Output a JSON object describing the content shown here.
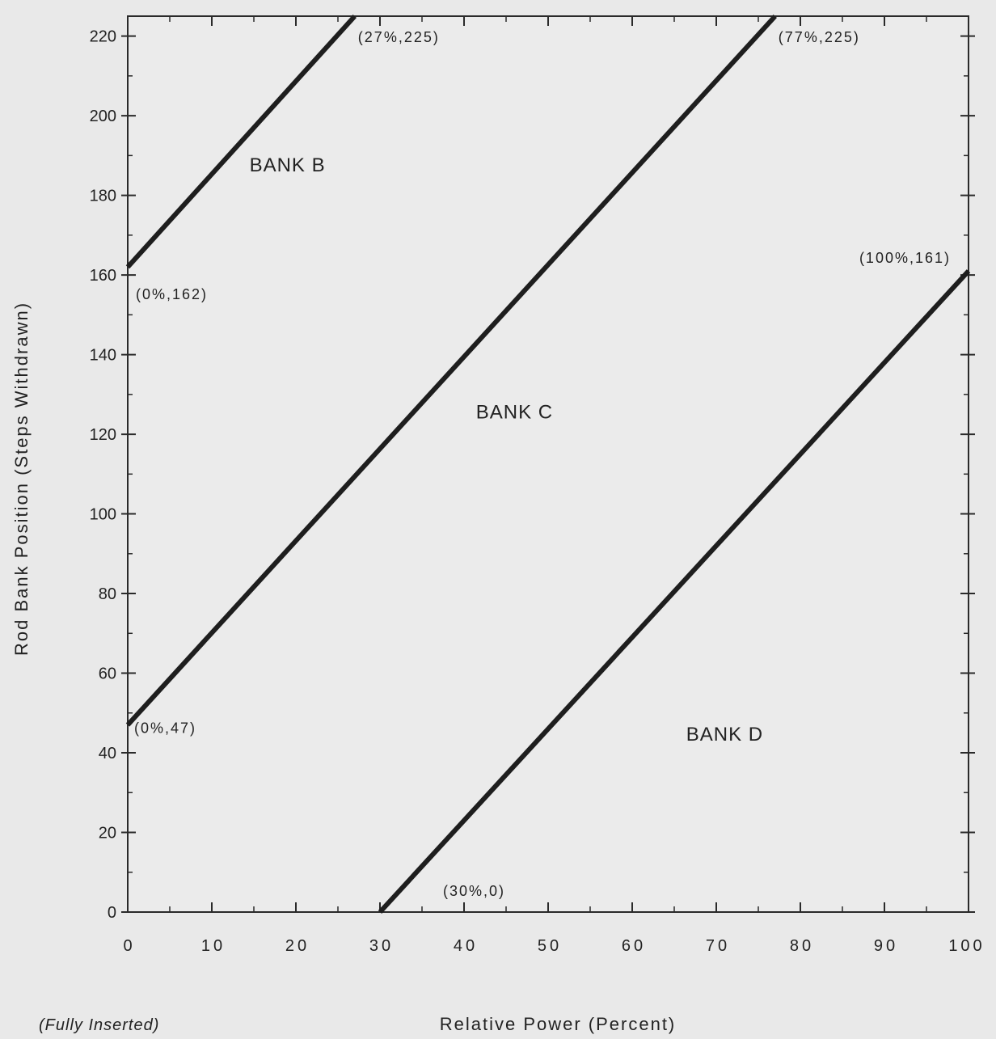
{
  "chart_data": {
    "type": "line",
    "title": "",
    "xlabel": "Relative Power (Percent)",
    "ylabel": "Rod Bank Position (Steps Withdrawn)",
    "x_note": "(Fully Inserted)",
    "xlim": [
      0,
      100
    ],
    "ylim": [
      0,
      225
    ],
    "x_ticks": [
      0,
      10,
      20,
      30,
      40,
      50,
      60,
      70,
      80,
      90,
      100
    ],
    "y_ticks": [
      0,
      20,
      40,
      60,
      80,
      100,
      120,
      140,
      160,
      180,
      200,
      220
    ],
    "x_tick_labels": [
      "0",
      "10",
      "20",
      "30",
      "40",
      "50",
      "60",
      "70",
      "80",
      "90",
      "100"
    ],
    "y_tick_labels": [
      "0",
      "20",
      "40",
      "60",
      "80",
      "100",
      "120",
      "140",
      "160",
      "180",
      "200",
      "220"
    ],
    "grid": false,
    "series": [
      {
        "name": "BANK B",
        "x": [
          0,
          27
        ],
        "y": [
          162,
          225
        ],
        "point_labels": [
          "(0%,162)",
          "(27%,225)"
        ],
        "label_at": [
          19,
          186
        ]
      },
      {
        "name": "BANK C",
        "x": [
          0,
          77
        ],
        "y": [
          47,
          225
        ],
        "point_labels": [
          "(0%,47)",
          "(77%,225)"
        ],
        "label_at": [
          46,
          124
        ]
      },
      {
        "name": "BANK D",
        "x": [
          30,
          100
        ],
        "y": [
          0,
          161
        ],
        "point_labels": [
          "(30%,0)",
          "(100%,161)"
        ],
        "label_at": [
          71,
          43
        ]
      }
    ]
  }
}
